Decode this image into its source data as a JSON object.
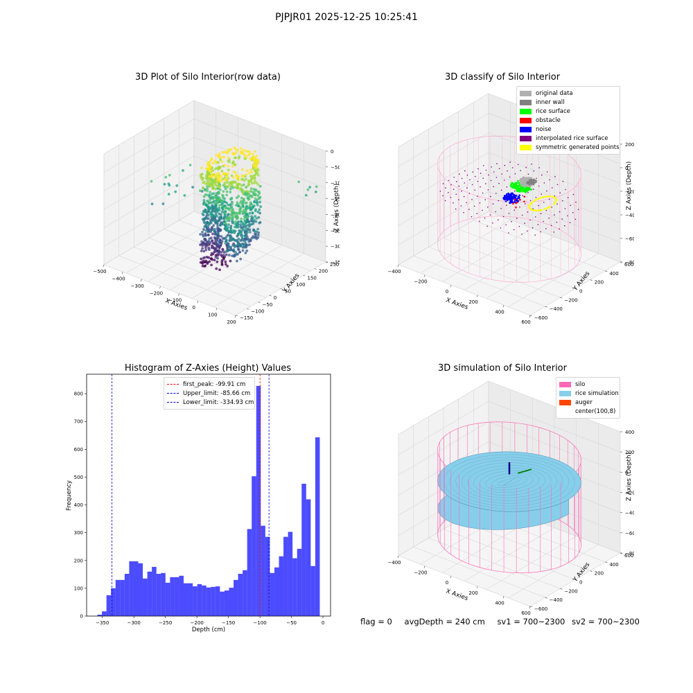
{
  "figure": {
    "suptitle": "PJPJR01 2025-12-25 10:25:41"
  },
  "chart_data": [
    {
      "type": "scatter3d",
      "title": "3D Plot of Silo Interior(row data)",
      "xlabel": "X Axies",
      "ylabel": "Y Axies",
      "zlabel": "Z Axies (Depth)",
      "xticks": [
        "−500",
        "−400",
        "−300",
        "−200",
        "−100",
        "0",
        "100",
        "200"
      ],
      "yticks": [
        "−150",
        "−100",
        "−50",
        "0",
        "50",
        "100",
        "150",
        "200",
        "250"
      ],
      "zticks": [
        "−350",
        "−300",
        "−250",
        "−200",
        "−150",
        "−100",
        "−50",
        "0"
      ],
      "colormap": "viridis",
      "xlim": [
        -500,
        200
      ],
      "ylim": [
        -150,
        250
      ],
      "zlim": [
        -380,
        0
      ]
    },
    {
      "type": "scatter3d",
      "title": "3D classify of Silo Interior",
      "xlabel": "X Axies",
      "ylabel": "Y Axies",
      "zlabel": "Z Axies (Depth)",
      "xticks": [
        "−400",
        "−200",
        "0",
        "200",
        "400",
        "600"
      ],
      "yticks": [
        "−600",
        "−400",
        "−200",
        "0",
        "200",
        "400",
        "600"
      ],
      "zticks": [
        "−800",
        "−600",
        "−400",
        "−200",
        "0",
        "200"
      ],
      "legend": [
        {
          "label": "original data",
          "color": "#b0b0b0"
        },
        {
          "label": "inner wall",
          "color": "#808080"
        },
        {
          "label": "rice surface",
          "color": "#00ff00"
        },
        {
          "label": "obstacle",
          "color": "#ff0000"
        },
        {
          "label": "noise",
          "color": "#0000ff"
        },
        {
          "label": "interpolated rice surface",
          "color": "#800080"
        },
        {
          "label": "symmetric generated points",
          "color": "#ffff00"
        }
      ],
      "legend_position": "top-right"
    },
    {
      "type": "bar",
      "title": "Histogram of Z-Axies (Height) Values",
      "xlabel": "Depth (cm)",
      "ylabel": "Frequency",
      "xlim": [
        -375,
        12
      ],
      "ylim": [
        0,
        870
      ],
      "xticks": [
        -350,
        -300,
        -250,
        -200,
        -150,
        -100,
        -50,
        0
      ],
      "xtick_labels": [
        "−350",
        "−300",
        "−250",
        "−200",
        "−150",
        "−100",
        "−50",
        "0"
      ],
      "yticks": [
        0,
        100,
        200,
        300,
        400,
        500,
        600,
        700,
        800
      ],
      "bin_edges": [
        -357.9,
        -350.7,
        -343.5,
        -336.3,
        -329.1,
        -321.9,
        -314.7,
        -307.5,
        -300.3,
        -293.1,
        -285.9,
        -278.7,
        -271.5,
        -264.3,
        -257.1,
        -249.9,
        -242.7,
        -235.5,
        -228.3,
        -221.1,
        -213.9,
        -206.7,
        -199.5,
        -192.3,
        -185.1,
        -177.9,
        -170.7,
        -163.5,
        -156.3,
        -149.1,
        -141.9,
        -134.7,
        -127.5,
        -120.3,
        -113.1,
        -105.9,
        -98.7,
        -91.5,
        -84.3,
        -77.1,
        -69.9,
        -62.7,
        -55.5,
        -48.3,
        -41.1,
        -33.9,
        -26.7,
        -19.5,
        -12.3,
        -5.1,
        2.1
      ],
      "values": [
        5,
        17,
        75,
        100,
        130,
        130,
        152,
        197,
        197,
        190,
        135,
        160,
        177,
        152,
        155,
        120,
        140,
        140,
        145,
        118,
        118,
        107,
        115,
        110,
        103,
        105,
        107,
        88,
        92,
        102,
        130,
        152,
        165,
        313,
        503,
        828,
        325,
        285,
        155,
        175,
        215,
        285,
        303,
        208,
        242,
        476,
        420,
        180,
        643,
        0
      ],
      "bar_color": "#0000ff",
      "lines": [
        {
          "label": "first_peak: -99.91 cm",
          "x": -99.91,
          "color": "#ff0000"
        },
        {
          "label": "Upper_limit: -85.66 cm",
          "x": -85.66,
          "color": "#0000cc"
        },
        {
          "label": "Lower_limit: -334.93 cm",
          "x": -334.93,
          "color": "#0000cc"
        }
      ],
      "legend_position": "top-center"
    },
    {
      "type": "surface3d",
      "title": "3D simulation of Silo Interior",
      "xlabel": "X Axies",
      "ylabel": "Y Axies",
      "zlabel": "Z Axies (Depth)",
      "xticks": [
        "−400",
        "−200",
        "0",
        "200",
        "400",
        "600"
      ],
      "yticks": [
        "−600",
        "−400",
        "−200",
        "0",
        "200",
        "400",
        "600"
      ],
      "zticks": [
        "−800",
        "−600",
        "−400",
        "−200",
        "0",
        "200",
        "400"
      ],
      "legend": [
        {
          "label": "silo",
          "color": "#ff69b4"
        },
        {
          "label": "rice simulation",
          "color": "#87ceeb"
        },
        {
          "label": "auger",
          "color": "#ff4500"
        },
        {
          "label": "center(100,8)",
          "color": "#ffffff"
        }
      ],
      "legend_position": "top-right"
    }
  ],
  "status": {
    "flag": "flag = 0",
    "avg_depth": "avgDepth = 240 cm",
    "sv1": "sv1 = 700~2300",
    "sv2": "sv2 = 700~2300"
  }
}
